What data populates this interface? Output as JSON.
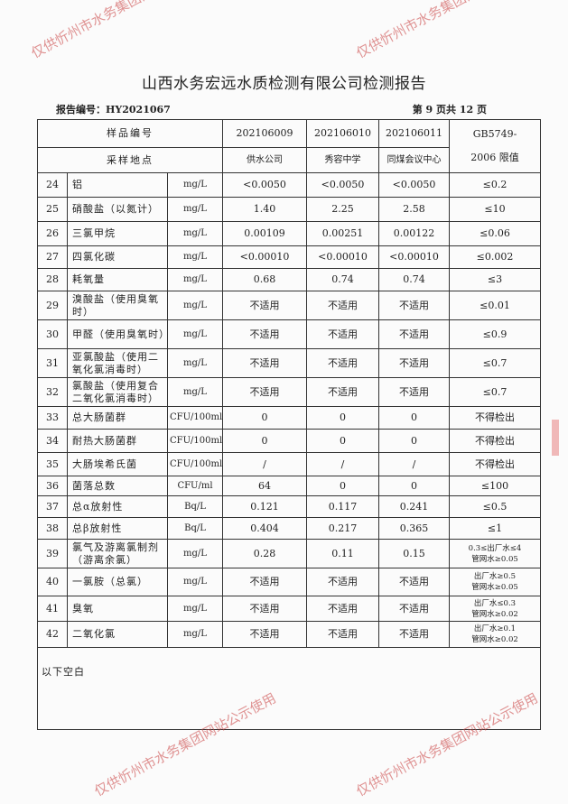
{
  "title": "山西水务宏远水质检测有限公司检测报告",
  "report_no": "报告编号：HY2021067",
  "page_info": "第 9 页共 12 页",
  "header": {
    "sample_no_label": "样品编号",
    "location_label": "采样地点",
    "samples": [
      "202106009",
      "202106010",
      "202106011"
    ],
    "locations": [
      "供水公司",
      "秀容中学",
      "同煤会议中心"
    ],
    "limit_label_1": "GB5749-",
    "limit_label_2": "2006 限值"
  },
  "rows": [
    {
      "no": "24",
      "name": "铝",
      "unit": "mg/L",
      "v": [
        "<0.0050",
        "<0.0050",
        "<0.0050"
      ],
      "limit": "≤0.2"
    },
    {
      "no": "25",
      "name": "硝酸盐（以氮计）",
      "unit": "mg/L",
      "v": [
        "1.40",
        "2.25",
        "2.58"
      ],
      "limit": "≤10"
    },
    {
      "no": "26",
      "name": "三氯甲烷",
      "unit": "mg/L",
      "v": [
        "0.00109",
        "0.00251",
        "0.00122"
      ],
      "limit": "≤0.06"
    },
    {
      "no": "27",
      "name": "四氯化碳",
      "unit": "mg/L",
      "v": [
        "<0.00010",
        "<0.00010",
        "<0.00010"
      ],
      "limit": "≤0.002"
    },
    {
      "no": "28",
      "name": "耗氧量",
      "unit": "mg/L",
      "v": [
        "0.68",
        "0.74",
        "0.74"
      ],
      "limit": "≤3"
    },
    {
      "no": "29",
      "name": "溴酸盐（使用臭氧时）",
      "unit": "mg/L",
      "v": [
        "不适用",
        "不适用",
        "不适用"
      ],
      "limit": "≤0.01"
    },
    {
      "no": "30",
      "name": "甲醛（使用臭氧时）",
      "unit": "mg/L",
      "v": [
        "不适用",
        "不适用",
        "不适用"
      ],
      "limit": "≤0.9"
    },
    {
      "no": "31",
      "name": "亚氯酸盐（使用二氧化氯消毒时）",
      "unit": "mg/L",
      "v": [
        "不适用",
        "不适用",
        "不适用"
      ],
      "limit": "≤0.7"
    },
    {
      "no": "32",
      "name": "氯酸盐（使用复合二氧化氯消毒时）",
      "unit": "mg/L",
      "v": [
        "不适用",
        "不适用",
        "不适用"
      ],
      "limit": "≤0.7"
    },
    {
      "no": "33",
      "name": "总大肠菌群",
      "unit": "CFU/100ml",
      "v": [
        "0",
        "0",
        "0"
      ],
      "limit": "不得检出"
    },
    {
      "no": "34",
      "name": "耐热大肠菌群",
      "unit": "CFU/100ml",
      "v": [
        "0",
        "0",
        "0"
      ],
      "limit": "不得检出"
    },
    {
      "no": "35",
      "name": "大肠埃希氏菌",
      "unit": "CFU/100ml",
      "v": [
        "/",
        "/",
        "/"
      ],
      "limit": "不得检出"
    },
    {
      "no": "36",
      "name": "菌落总数",
      "unit": "CFU/ml",
      "v": [
        "64",
        "0",
        "0"
      ],
      "limit": "≤100"
    },
    {
      "no": "37",
      "name": "总α放射性",
      "unit": "Bq/L",
      "v": [
        "0.121",
        "0.117",
        "0.241"
      ],
      "limit": "≤0.5"
    },
    {
      "no": "38",
      "name": "总β放射性",
      "unit": "Bq/L",
      "v": [
        "0.404",
        "0.217",
        "0.365"
      ],
      "limit": "≤1"
    },
    {
      "no": "39",
      "name": "氯气及游离氯制剂（游离余氯）",
      "unit": "mg/L",
      "v": [
        "0.28",
        "0.11",
        "0.15"
      ],
      "limit": "0.3≤出厂水≤4",
      "limit2": "管网水≥0.05"
    },
    {
      "no": "40",
      "name": "一氯胺（总氯）",
      "unit": "mg/L",
      "v": [
        "不适用",
        "不适用",
        "不适用"
      ],
      "limit": "出厂水≥0.5",
      "limit2": "管网水≥0.05"
    },
    {
      "no": "41",
      "name": "臭氧",
      "unit": "mg/L",
      "v": [
        "不适用",
        "不适用",
        "不适用"
      ],
      "limit": "出厂水≤0.3",
      "limit2": "管网水≥0.02"
    },
    {
      "no": "42",
      "name": "二氧化氯",
      "unit": "mg/L",
      "v": [
        "不适用",
        "不适用",
        "不适用"
      ],
      "limit": "出厂水≥0.1",
      "limit2": "管网水≥0.02"
    }
  ],
  "footer_note": "以下空白",
  "watermark": "仅供忻州市水务集团网站公示使用"
}
